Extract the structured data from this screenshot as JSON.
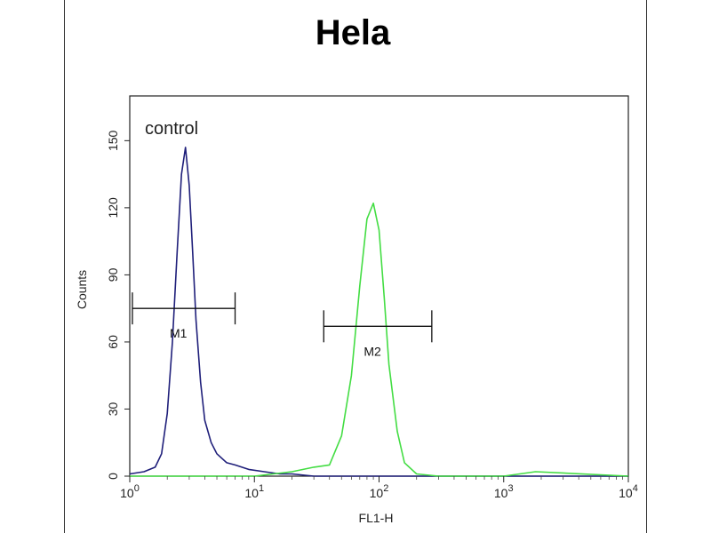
{
  "chart_data": {
    "type": "line",
    "title": "Hela",
    "xlabel": "FL1-H",
    "ylabel": "Counts",
    "x_scale": "log",
    "xlim": [
      1,
      10000
    ],
    "ylim": [
      0,
      170
    ],
    "x_ticks": [
      1,
      10,
      100,
      1000,
      10000
    ],
    "x_tick_labels": [
      {
        "base": "10",
        "exp": "0"
      },
      {
        "base": "10",
        "exp": "1"
      },
      {
        "base": "10",
        "exp": "2"
      },
      {
        "base": "10",
        "exp": "3"
      },
      {
        "base": "10",
        "exp": "4"
      }
    ],
    "y_ticks": [
      0,
      30,
      60,
      90,
      120,
      150
    ],
    "y_tick_labels": [
      "0",
      "30",
      "60",
      "90",
      "120",
      "150"
    ],
    "grid": false,
    "annotations": [
      {
        "text": "control"
      }
    ],
    "series": [
      {
        "color": "#1f1f7a",
        "x": [
          1.0,
          1.3,
          1.6,
          1.8,
          2.0,
          2.2,
          2.4,
          2.6,
          2.8,
          3.0,
          3.2,
          3.4,
          3.7,
          4.0,
          4.5,
          5.0,
          6.0,
          7.0,
          9.0,
          12.0,
          16.0,
          20.0,
          30.0,
          60.0,
          100.0,
          1000.0,
          10000.0
        ],
        "y": [
          1,
          2,
          4,
          10,
          28,
          60,
          100,
          135,
          147,
          130,
          100,
          70,
          42,
          25,
          15,
          10,
          6,
          5,
          3,
          2,
          1,
          1,
          0,
          0,
          0,
          0,
          0
        ]
      },
      {
        "color": "#44dd44",
        "x": [
          1.0,
          10.0,
          20.0,
          30.0,
          40.0,
          50.0,
          60.0,
          70.0,
          80.0,
          90.0,
          100.0,
          110.0,
          120.0,
          140.0,
          160.0,
          200.0,
          300.0,
          1000.0,
          1800.0,
          10000.0
        ],
        "y": [
          0,
          0,
          2,
          4,
          5,
          18,
          45,
          85,
          115,
          122,
          110,
          80,
          50,
          20,
          6,
          1,
          0,
          0,
          2,
          0
        ]
      }
    ],
    "gates": [
      {
        "label": "M1",
        "x_start": 1.05,
        "x_end": 7.0,
        "y": 75
      },
      {
        "label": "M2",
        "x_start": 36.0,
        "x_end": 265.0,
        "y": 67
      }
    ]
  }
}
